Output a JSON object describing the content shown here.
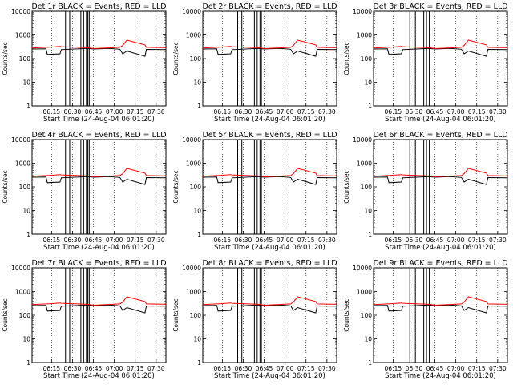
{
  "chart_data": [
    {
      "type": "line",
      "title": "Det 1r BLACK = Events, RED = LLD",
      "xlabel": "Start Time (24-Aug-04 06:01:20)",
      "ylabel": "Counts/sec",
      "yscale": "log",
      "ylim": [
        1,
        10000
      ],
      "x_ticks": [
        "06:15",
        "06:30",
        "06:45",
        "07:00",
        "07:15",
        "07:30"
      ],
      "y_ticks": [
        "1",
        "10",
        "100",
        "1000",
        "10000"
      ],
      "x_minutes": [
        0,
        10,
        11,
        20,
        21,
        40,
        44,
        55,
        63,
        65,
        68,
        81,
        82,
        96
      ],
      "series": [
        {
          "name": "BLACK = Events",
          "color": "#000000",
          "values": [
            255,
            260,
            150,
            160,
            240,
            270,
            255,
            270,
            250,
            160,
            210,
            125,
            245,
            240
          ]
        },
        {
          "name": "RED = LLD",
          "color": "#ff0000",
          "values": [
            280,
            300,
            300,
            330,
            320,
            290,
            265,
            285,
            300,
            360,
            600,
            380,
            300,
            290
          ]
        }
      ],
      "vlines": [
        24,
        27,
        35,
        37,
        39,
        40,
        41
      ]
    },
    {
      "type": "line",
      "title": "Det 2r BLACK = Events, RED = LLD",
      "xlabel": "Start Time (24-Aug-04 06:01:20)",
      "ylabel": "Counts/sec",
      "yscale": "log",
      "ylim": [
        1,
        10000
      ],
      "x_ticks": [
        "06:15",
        "06:30",
        "06:45",
        "07:00",
        "07:15",
        "07:30"
      ],
      "y_ticks": [
        "1",
        "10",
        "100",
        "1000",
        "10000"
      ],
      "x_minutes": [
        0,
        10,
        11,
        20,
        21,
        40,
        44,
        55,
        63,
        65,
        68,
        81,
        82,
        96
      ],
      "series": [
        {
          "name": "BLACK = Events",
          "color": "#000000",
          "values": [
            255,
            260,
            150,
            160,
            240,
            270,
            255,
            270,
            250,
            160,
            210,
            125,
            245,
            240
          ]
        },
        {
          "name": "RED = LLD",
          "color": "#ff0000",
          "values": [
            280,
            300,
            300,
            330,
            320,
            290,
            265,
            285,
            300,
            360,
            600,
            380,
            300,
            290
          ]
        }
      ],
      "vlines": [
        25,
        28,
        37,
        39,
        41,
        42
      ]
    },
    {
      "type": "line",
      "title": "Det 3r BLACK = Events, RED = LLD",
      "xlabel": "Start Time (24-Aug-04 06:01:20)",
      "ylabel": "Counts/sec",
      "yscale": "log",
      "ylim": [
        1,
        10000
      ],
      "x_ticks": [
        "06:15",
        "06:30",
        "06:45",
        "07:00",
        "07:15",
        "07:30"
      ],
      "y_ticks": [
        "1",
        "10",
        "100",
        "1000",
        "10000"
      ],
      "x_minutes": [
        0,
        10,
        11,
        20,
        21,
        40,
        44,
        55,
        63,
        65,
        68,
        81,
        82,
        96
      ],
      "series": [
        {
          "name": "BLACK = Events",
          "color": "#000000",
          "values": [
            255,
            260,
            150,
            160,
            240,
            270,
            255,
            270,
            250,
            160,
            210,
            125,
            245,
            240
          ]
        },
        {
          "name": "RED = LLD",
          "color": "#ff0000",
          "values": [
            280,
            300,
            300,
            330,
            320,
            290,
            265,
            285,
            300,
            360,
            600,
            380,
            300,
            290
          ]
        }
      ],
      "vlines": [
        26,
        30,
        36,
        38,
        40
      ]
    },
    {
      "type": "line",
      "title": "Det 4r BLACK = Events, RED = LLD",
      "xlabel": "Start Time (24-Aug-04 06:01:20)",
      "ylabel": "Counts/sec",
      "yscale": "log",
      "ylim": [
        1,
        10000
      ],
      "x_ticks": [
        "06:15",
        "06:30",
        "06:45",
        "07:00",
        "07:15",
        "07:30"
      ],
      "y_ticks": [
        "1",
        "10",
        "100",
        "1000",
        "10000"
      ],
      "x_minutes": [
        0,
        10,
        11,
        20,
        21,
        40,
        44,
        55,
        63,
        65,
        68,
        81,
        82,
        96
      ],
      "series": [
        {
          "name": "BLACK = Events",
          "color": "#000000",
          "values": [
            255,
            260,
            150,
            160,
            240,
            270,
            255,
            270,
            250,
            160,
            210,
            125,
            245,
            240
          ]
        },
        {
          "name": "RED = LLD",
          "color": "#ff0000",
          "values": [
            280,
            300,
            300,
            330,
            320,
            290,
            265,
            285,
            300,
            360,
            600,
            380,
            300,
            290
          ]
        }
      ],
      "vlines": [
        24,
        27,
        35,
        37,
        39,
        40,
        41
      ]
    },
    {
      "type": "line",
      "title": "Det 5r BLACK = Events, RED = LLD",
      "xlabel": "Start Time (24-Aug-04 06:01:20)",
      "ylabel": "Counts/sec",
      "yscale": "log",
      "ylim": [
        1,
        10000
      ],
      "x_ticks": [
        "06:15",
        "06:30",
        "06:45",
        "07:00",
        "07:15",
        "07:30"
      ],
      "y_ticks": [
        "1",
        "10",
        "100",
        "1000",
        "10000"
      ],
      "x_minutes": [
        0,
        10,
        11,
        20,
        21,
        40,
        44,
        55,
        63,
        65,
        68,
        81,
        82,
        96
      ],
      "series": [
        {
          "name": "BLACK = Events",
          "color": "#000000",
          "values": [
            255,
            260,
            150,
            160,
            240,
            270,
            255,
            270,
            250,
            160,
            210,
            125,
            245,
            240
          ]
        },
        {
          "name": "RED = LLD",
          "color": "#ff0000",
          "values": [
            280,
            300,
            300,
            330,
            320,
            290,
            265,
            285,
            300,
            360,
            600,
            380,
            300,
            290
          ]
        }
      ],
      "vlines": [
        25,
        28,
        37,
        39,
        41,
        42
      ]
    },
    {
      "type": "line",
      "title": "Det 6r BLACK = Events, RED = LLD",
      "xlabel": "Start Time (24-Aug-04 06:01:20)",
      "ylabel": "Counts/sec",
      "yscale": "log",
      "ylim": [
        1,
        10000
      ],
      "x_ticks": [
        "06:15",
        "06:30",
        "06:45",
        "07:00",
        "07:15",
        "07:30"
      ],
      "y_ticks": [
        "1",
        "10",
        "100",
        "1000",
        "10000"
      ],
      "x_minutes": [
        0,
        10,
        11,
        20,
        21,
        40,
        44,
        55,
        63,
        65,
        68,
        81,
        82,
        96
      ],
      "series": [
        {
          "name": "BLACK = Events",
          "color": "#000000",
          "values": [
            255,
            260,
            150,
            160,
            240,
            270,
            255,
            270,
            250,
            160,
            210,
            125,
            245,
            240
          ]
        },
        {
          "name": "RED = LLD",
          "color": "#ff0000",
          "values": [
            280,
            300,
            300,
            330,
            320,
            290,
            265,
            285,
            300,
            360,
            600,
            380,
            300,
            290
          ]
        }
      ],
      "vlines": [
        26,
        30,
        36,
        38,
        40
      ]
    },
    {
      "type": "line",
      "title": "Det 7r BLACK = Events, RED = LLD",
      "xlabel": "Start Time (24-Aug-04 06:01:20)",
      "ylabel": "Counts/sec",
      "yscale": "log",
      "ylim": [
        1,
        10000
      ],
      "x_ticks": [
        "06:15",
        "06:30",
        "06:45",
        "07:00",
        "07:15",
        "07:30"
      ],
      "y_ticks": [
        "1",
        "10",
        "100",
        "1000",
        "10000"
      ],
      "x_minutes": [
        0,
        10,
        11,
        20,
        21,
        40,
        44,
        55,
        63,
        65,
        68,
        81,
        82,
        96
      ],
      "series": [
        {
          "name": "BLACK = Events",
          "color": "#000000",
          "values": [
            255,
            260,
            150,
            160,
            240,
            270,
            255,
            270,
            250,
            160,
            210,
            125,
            245,
            240
          ]
        },
        {
          "name": "RED = LLD",
          "color": "#ff0000",
          "values": [
            280,
            300,
            300,
            330,
            320,
            290,
            265,
            285,
            300,
            360,
            600,
            380,
            300,
            290
          ]
        }
      ],
      "vlines": [
        24,
        27,
        35,
        37,
        39,
        40,
        41
      ]
    },
    {
      "type": "line",
      "title": "Det 8r BLACK = Events, RED = LLD",
      "xlabel": "Start Time (24-Aug-04 06:01:20)",
      "ylabel": "Counts/sec",
      "yscale": "log",
      "ylim": [
        1,
        10000
      ],
      "x_ticks": [
        "06:15",
        "06:30",
        "06:45",
        "07:00",
        "07:15",
        "07:30"
      ],
      "y_ticks": [
        "1",
        "10",
        "100",
        "1000",
        "10000"
      ],
      "x_minutes": [
        0,
        10,
        11,
        20,
        21,
        40,
        44,
        55,
        63,
        65,
        68,
        81,
        82,
        96
      ],
      "series": [
        {
          "name": "BLACK = Events",
          "color": "#000000",
          "values": [
            255,
            260,
            150,
            160,
            240,
            270,
            255,
            270,
            250,
            160,
            210,
            125,
            245,
            240
          ]
        },
        {
          "name": "RED = LLD",
          "color": "#ff0000",
          "values": [
            280,
            300,
            300,
            330,
            320,
            290,
            265,
            285,
            300,
            360,
            600,
            380,
            300,
            290
          ]
        }
      ],
      "vlines": [
        25,
        28,
        37,
        39,
        41,
        42
      ]
    },
    {
      "type": "line",
      "title": "Det 9r BLACK = Events, RED = LLD",
      "xlabel": "Start Time (24-Aug-04 06:01:20)",
      "ylabel": "Counts/sec",
      "yscale": "log",
      "ylim": [
        1,
        10000
      ],
      "x_ticks": [
        "06:15",
        "06:30",
        "06:45",
        "07:00",
        "07:15",
        "07:30"
      ],
      "y_ticks": [
        "1",
        "10",
        "100",
        "1000",
        "10000"
      ],
      "x_minutes": [
        0,
        10,
        11,
        20,
        21,
        40,
        44,
        55,
        63,
        65,
        68,
        81,
        82,
        96
      ],
      "series": [
        {
          "name": "BLACK = Events",
          "color": "#000000",
          "values": [
            255,
            260,
            150,
            160,
            240,
            270,
            255,
            270,
            250,
            160,
            210,
            125,
            245,
            240
          ]
        },
        {
          "name": "RED = LLD",
          "color": "#ff0000",
          "values": [
            280,
            300,
            300,
            330,
            320,
            290,
            265,
            285,
            300,
            360,
            600,
            380,
            300,
            290
          ]
        }
      ],
      "vlines": [
        26,
        30,
        36,
        38,
        40
      ]
    }
  ]
}
